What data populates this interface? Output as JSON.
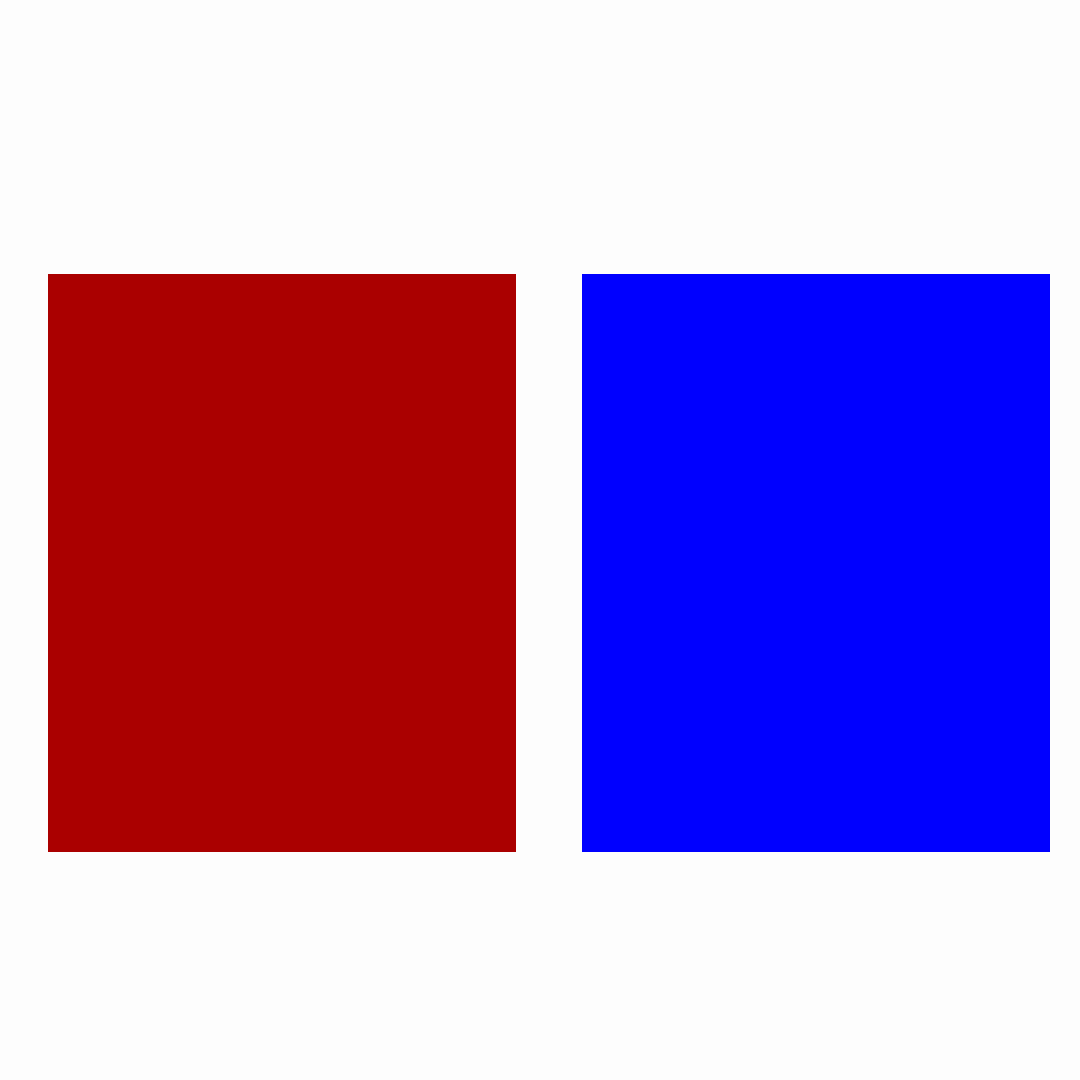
{
  "blocks": [
    {
      "name": "red-panel",
      "color": "#aa0000"
    },
    {
      "name": "blue-panel",
      "color": "#0000ff"
    }
  ],
  "background_color": "#fdfdfd"
}
